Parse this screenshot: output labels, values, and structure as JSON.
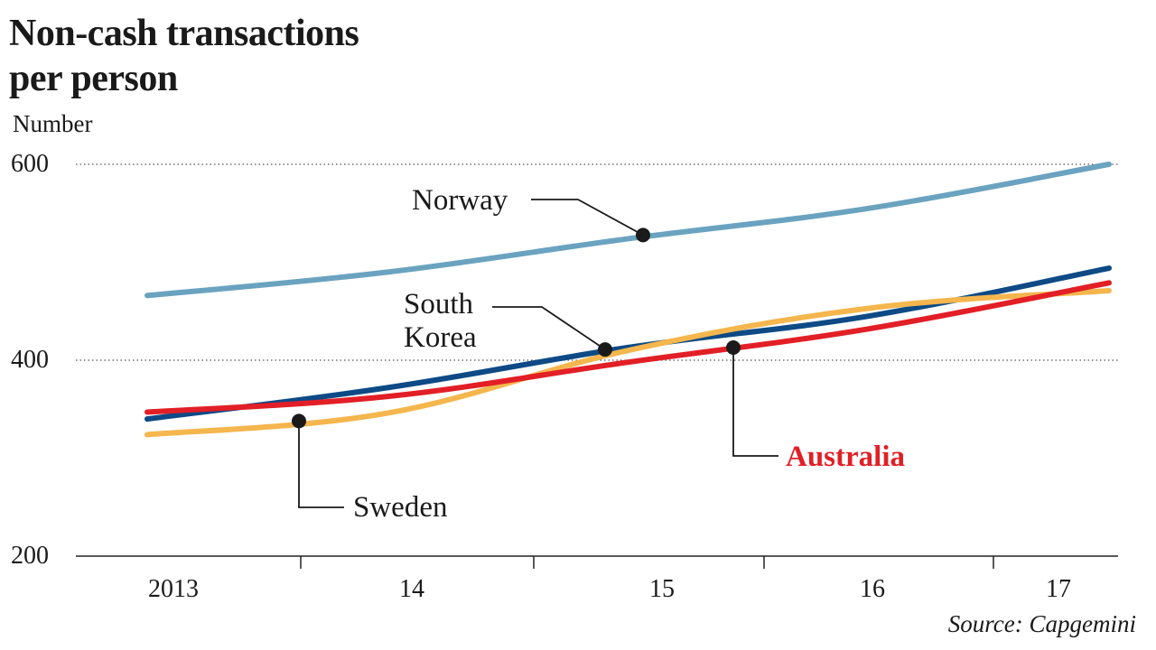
{
  "chart_data": {
    "type": "line",
    "title_lines": [
      "Non-cash transactions",
      "per person"
    ],
    "ylabel": "Number",
    "ylim": [
      200,
      600
    ],
    "yticks": [
      "200",
      "400",
      "600"
    ],
    "x": [
      2013,
      2014,
      2015,
      2016,
      2017
    ],
    "xtick_labels": [
      "2013",
      "14",
      "15",
      "16",
      "17"
    ],
    "grid_values": [
      400,
      600
    ],
    "series": [
      {
        "name": "Norway",
        "color": "#6aa3bf",
        "values": [
          466,
          490,
          524,
          555,
          600
        ]
      },
      {
        "name": "South Korea",
        "color": "#0d4a86",
        "values": [
          340,
          372,
          413,
          445,
          494
        ]
      },
      {
        "name": "Sweden",
        "color": "#f4b64d",
        "values": [
          324,
          346,
          410,
          453,
          471
        ]
      },
      {
        "name": "Australia",
        "color": "#e21f26",
        "values": [
          347,
          363,
          398,
          432,
          479
        ]
      }
    ],
    "annotations": {
      "norway": "Norway",
      "south_korea": [
        "South",
        "Korea"
      ],
      "sweden": "Sweden",
      "australia": "Australia"
    },
    "source": "Source: Capgemini"
  }
}
